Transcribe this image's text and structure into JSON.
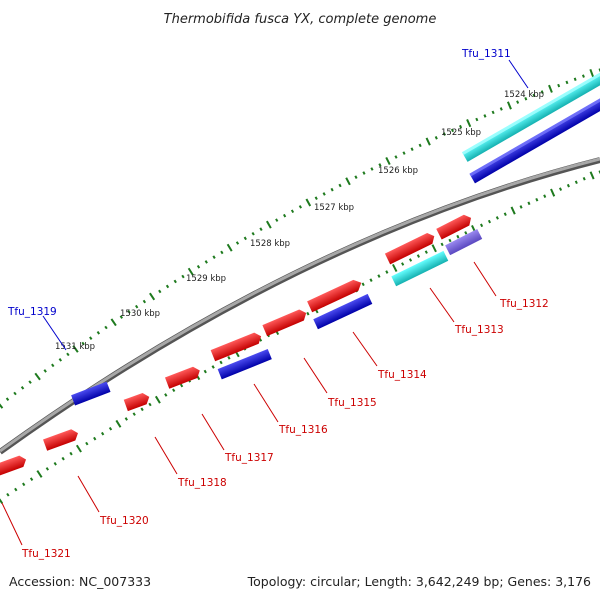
{
  "title": "Thermobifida fusca YX, complete genome",
  "accession": "Accession: NC_007333",
  "summary": "Topology: circular; Length: 3,642,249 bp; Genes: 3,176",
  "kbp_ticks": [
    "1524 kbp",
    "1525 kbp",
    "1526 kbp",
    "1527 kbp",
    "1528 kbp",
    "1529 kbp",
    "1530 kbp",
    "1531 kbp"
  ],
  "genes": [
    {
      "label": "Tfu_1311",
      "color": "#0000cc"
    },
    {
      "label": "Tfu_1312",
      "color": "#cc0000"
    },
    {
      "label": "Tfu_1313",
      "color": "#cc0000"
    },
    {
      "label": "Tfu_1314",
      "color": "#cc0000"
    },
    {
      "label": "Tfu_1315",
      "color": "#cc0000"
    },
    {
      "label": "Tfu_1316",
      "color": "#cc0000"
    },
    {
      "label": "Tfu_1317",
      "color": "#cc0000"
    },
    {
      "label": "Tfu_1318",
      "color": "#cc0000"
    },
    {
      "label": "Tfu_1319",
      "color": "#0000cc"
    },
    {
      "label": "Tfu_1320",
      "color": "#cc0000"
    },
    {
      "label": "Tfu_1321",
      "color": "#cc0000"
    }
  ],
  "colors": {
    "forward_cds": "#ee1111",
    "reverse_cds": "#1a1acc",
    "rna": "#11cccc",
    "misc_feature": "#7766dd",
    "backbone": "#888888",
    "ticks": "#1e7a1e"
  }
}
